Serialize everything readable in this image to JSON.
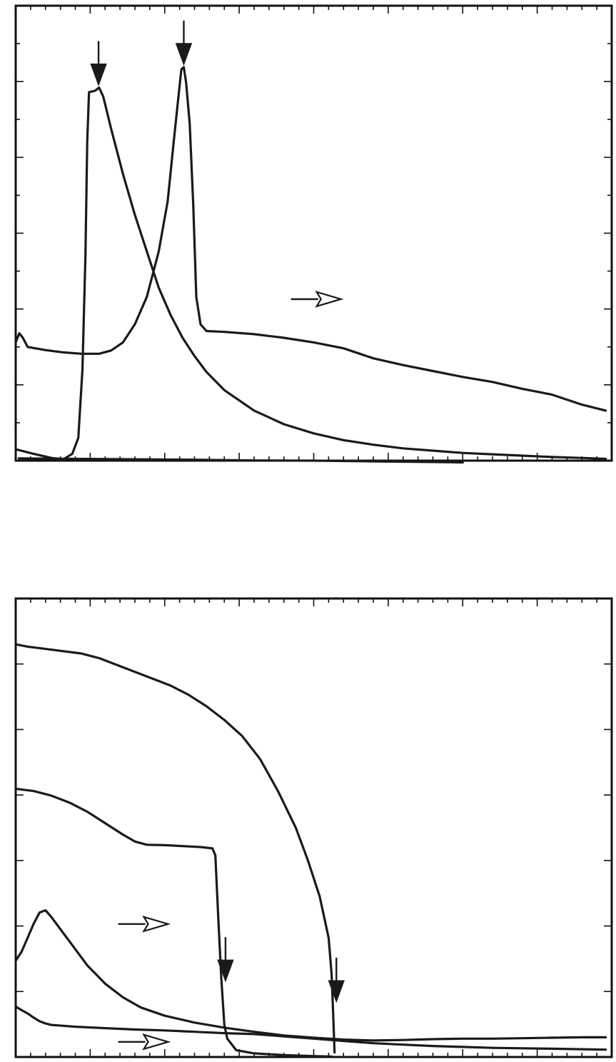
{
  "chart_data": [
    {
      "type": "line",
      "title": "",
      "xlabel": "",
      "ylabel": "",
      "xlim": [
        0,
        100
      ],
      "ylim": [
        0,
        100
      ],
      "grid": false,
      "axis_ticks": {
        "x_major": 8,
        "x_minor_per_major": 5,
        "y_major": 6,
        "y_minor_per_major": 2
      },
      "series": [
        {
          "points": [
            [
              0,
              2.5
            ],
            [
              3,
              1.5
            ],
            [
              6,
              0.6
            ],
            [
              8,
              0.3
            ],
            [
              9.5,
              1.5
            ],
            [
              10.5,
              5
            ],
            [
              11.2,
              20
            ],
            [
              11.7,
              45
            ],
            [
              12,
              70
            ],
            [
              12.3,
              81
            ],
            [
              13.3,
              81.3
            ],
            [
              14,
              82
            ],
            [
              14.7,
              80
            ],
            [
              16,
              73
            ],
            [
              18,
              63
            ],
            [
              20,
              54
            ],
            [
              22,
              46
            ],
            [
              24,
              38
            ],
            [
              26,
              32
            ],
            [
              28,
              27
            ],
            [
              30,
              23
            ],
            [
              32,
              19.5
            ],
            [
              35,
              15.5
            ],
            [
              40,
              11
            ],
            [
              45,
              8
            ],
            [
              50,
              6
            ],
            [
              55,
              4.5
            ],
            [
              60,
              3.5
            ],
            [
              65,
              2.7
            ],
            [
              70,
              2.2
            ],
            [
              75,
              1.7
            ],
            [
              80,
              1.4
            ],
            [
              85,
              1.1
            ],
            [
              90,
              0.8
            ],
            [
              95,
              0.6
            ],
            [
              99,
              0.4
            ]
          ]
        },
        {
          "points": [
            [
              0,
              26
            ],
            [
              0.6,
              28
            ],
            [
              1.2,
              27
            ],
            [
              2,
              25
            ],
            [
              5,
              24.3
            ],
            [
              8,
              23.8
            ],
            [
              11,
              23.5
            ],
            [
              14,
              23.5
            ],
            [
              16,
              24.2
            ],
            [
              18,
              26
            ],
            [
              20,
              30
            ],
            [
              22,
              36
            ],
            [
              24,
              46
            ],
            [
              25.5,
              57
            ],
            [
              26.5,
              70
            ],
            [
              27.3,
              80
            ],
            [
              27.8,
              86
            ],
            [
              28.2,
              86.5
            ],
            [
              28.6,
              83
            ],
            [
              29.2,
              74
            ],
            [
              29.8,
              56
            ],
            [
              30.3,
              36
            ],
            [
              31,
              30
            ],
            [
              32,
              28.5
            ],
            [
              35,
              28.3
            ],
            [
              40,
              27.8
            ],
            [
              45,
              27
            ],
            [
              50,
              26
            ],
            [
              55,
              24.7
            ],
            [
              60,
              22.5
            ],
            [
              65,
              21
            ],
            [
              70,
              19.7
            ],
            [
              75,
              18.4
            ],
            [
              80,
              17.3
            ],
            [
              85,
              15.8
            ],
            [
              90,
              14.5
            ],
            [
              95,
              12.3
            ],
            [
              99,
              11
            ]
          ]
        },
        {
          "points": [
            [
              0.5,
              0.5
            ],
            [
              10,
              0.4
            ],
            [
              20,
              0.3
            ],
            [
              30,
              0.2
            ],
            [
              40,
              0.05
            ],
            [
              50,
              0
            ],
            [
              60,
              -0.15
            ],
            [
              70,
              -0.3
            ],
            [
              75,
              -0.4
            ]
          ]
        }
      ],
      "annotations": [
        {
          "kind": "solid-down-arrow",
          "x": 13.9,
          "y": 82.5
        },
        {
          "kind": "solid-down-arrow",
          "x": 28.2,
          "y": 87
        },
        {
          "kind": "open-right-arrow",
          "x": 50.5,
          "y": 35.5
        }
      ]
    },
    {
      "type": "line",
      "title": "",
      "xlabel": "",
      "ylabel": "",
      "xlim": [
        0,
        100
      ],
      "ylim": [
        0,
        100
      ],
      "grid": false,
      "axis_ticks": {
        "x_major": 8,
        "x_minor_per_major": 5,
        "y_major": 7,
        "y_minor_per_major": 1
      },
      "series": [
        {
          "points": [
            [
              0,
              90
            ],
            [
              2,
              89.5
            ],
            [
              5,
              89
            ],
            [
              8,
              88.5
            ],
            [
              11,
              88
            ],
            [
              14,
              87
            ],
            [
              17,
              85.5
            ],
            [
              20,
              84
            ],
            [
              23,
              82.5
            ],
            [
              26,
              81
            ],
            [
              29,
              79
            ],
            [
              32,
              76.5
            ],
            [
              35,
              73.5
            ],
            [
              38,
              70
            ],
            [
              41,
              65
            ],
            [
              44,
              58
            ],
            [
              47,
              50
            ],
            [
              49,
              43
            ],
            [
              51,
              35
            ],
            [
              52.5,
              26
            ],
            [
              53,
              18
            ],
            [
              53.3,
              8
            ],
            [
              53.5,
              1
            ]
          ]
        },
        {
          "points": [
            [
              0,
              58.5
            ],
            [
              3,
              58
            ],
            [
              6,
              57
            ],
            [
              9,
              55.5
            ],
            [
              12,
              53.5
            ],
            [
              15,
              51
            ],
            [
              18,
              48.5
            ],
            [
              20,
              47
            ],
            [
              22,
              46.3
            ],
            [
              25,
              46.2
            ],
            [
              28,
              46
            ],
            [
              31,
              45.8
            ],
            [
              33,
              45.5
            ],
            [
              33.5,
              44
            ],
            [
              34,
              30
            ],
            [
              34.5,
              17
            ],
            [
              35,
              7
            ],
            [
              35.5,
              4
            ],
            [
              37,
              1.5
            ],
            [
              40,
              0.8
            ],
            [
              45,
              0.4
            ],
            [
              50,
              0.2
            ],
            [
              53,
              0.1
            ]
          ]
        },
        {
          "points": [
            [
              0,
              21
            ],
            [
              1,
              23
            ],
            [
              2,
              26
            ],
            [
              3,
              29
            ],
            [
              4,
              31.5
            ],
            [
              5,
              32
            ],
            [
              6,
              30.5
            ],
            [
              8,
              27
            ],
            [
              10,
              23.5
            ],
            [
              12,
              20
            ],
            [
              15,
              16
            ],
            [
              18,
              13
            ],
            [
              21,
              10.8
            ],
            [
              25,
              9
            ],
            [
              30,
              7.5
            ],
            [
              35,
              6.4
            ],
            [
              40,
              5.5
            ],
            [
              45,
              4.7
            ],
            [
              50,
              4.2
            ],
            [
              55,
              3.8
            ],
            [
              60,
              3.6
            ],
            [
              65,
              3.7
            ],
            [
              70,
              3.9
            ],
            [
              75,
              4
            ],
            [
              80,
              4
            ],
            [
              85,
              4.1
            ],
            [
              90,
              4.2
            ],
            [
              95,
              4.3
            ],
            [
              99,
              4.3
            ]
          ]
        },
        {
          "points": [
            [
              0,
              11
            ],
            [
              1,
              10.2
            ],
            [
              2,
              9.5
            ],
            [
              3,
              8.6
            ],
            [
              4,
              7.8
            ],
            [
              5,
              7.3
            ],
            [
              6,
              7
            ],
            [
              8,
              6.8
            ],
            [
              10,
              6.6
            ],
            [
              15,
              6.3
            ],
            [
              20,
              6
            ],
            [
              25,
              5.8
            ],
            [
              30,
              5.5
            ],
            [
              35,
              5.2
            ],
            [
              40,
              5
            ],
            [
              45,
              4.5
            ],
            [
              50,
              4
            ],
            [
              55,
              3.5
            ],
            [
              60,
              3
            ],
            [
              65,
              2.7
            ],
            [
              70,
              2.4
            ],
            [
              75,
              2.2
            ],
            [
              80,
              2
            ],
            [
              85,
              1.9
            ],
            [
              90,
              1.8
            ],
            [
              95,
              1.7
            ],
            [
              99,
              1.6
            ]
          ]
        }
      ],
      "annotations": [
        {
          "kind": "solid-down-arrow",
          "x": 35.2,
          "y": 16.5
        },
        {
          "kind": "solid-down-arrow",
          "x": 53.8,
          "y": 12
        },
        {
          "kind": "open-right-arrow",
          "x": 21.5,
          "y": 29
        },
        {
          "kind": "open-right-arrow",
          "x": 21.5,
          "y": 3.3
        }
      ]
    }
  ]
}
